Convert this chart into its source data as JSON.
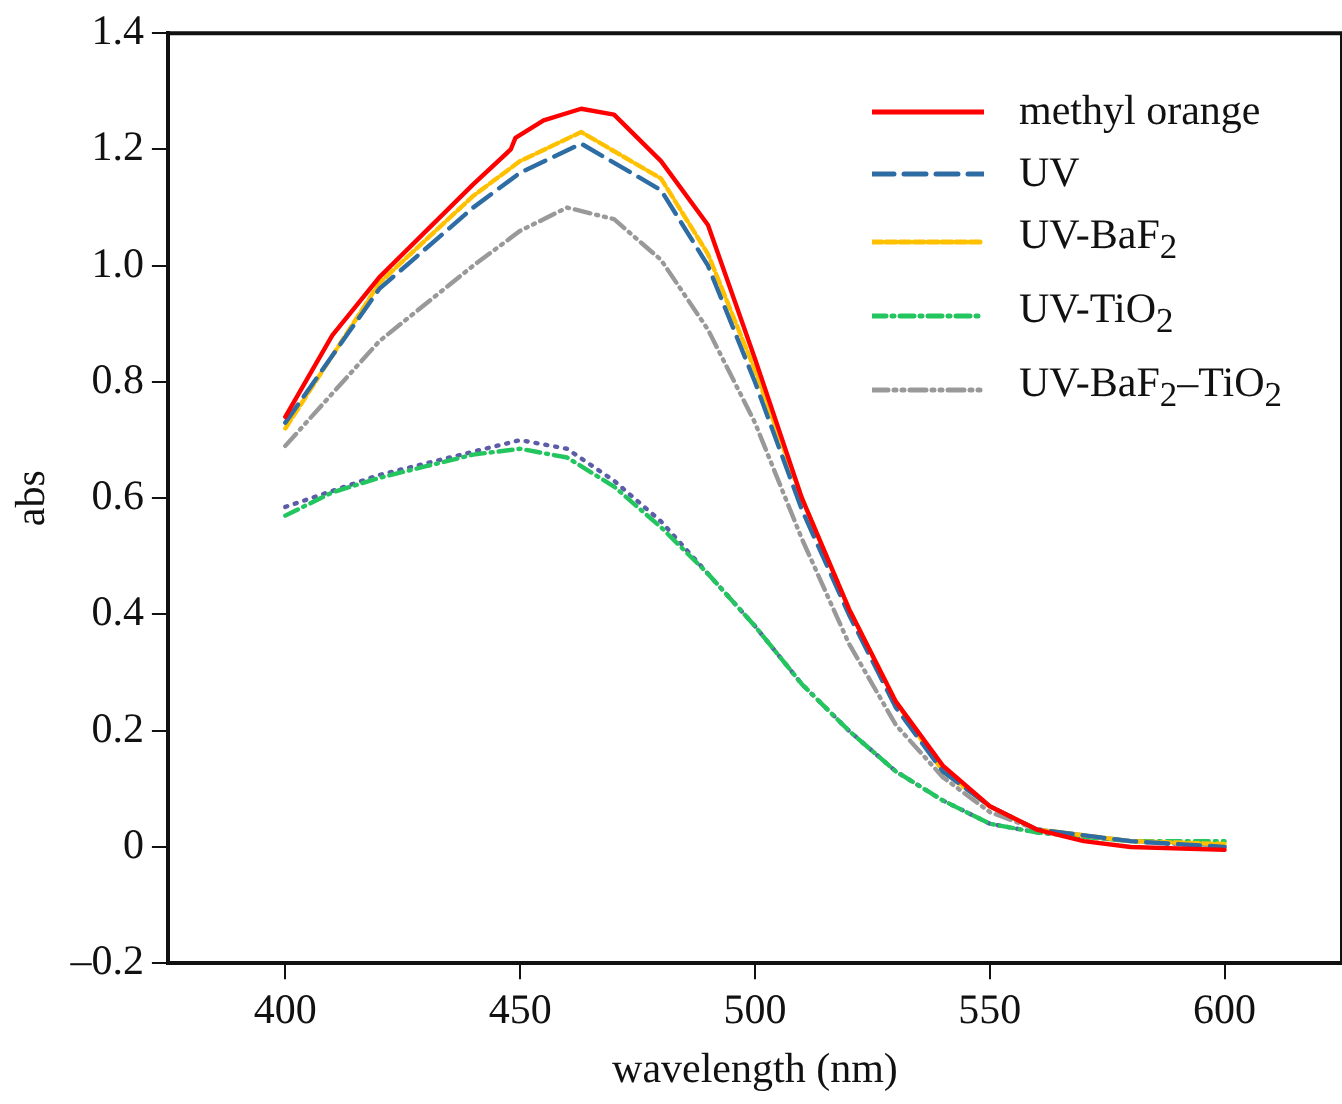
{
  "chart_data": {
    "type": "line",
    "xlabel": "wavelength (nm)",
    "ylabel": "abs",
    "xlim": [
      375,
      625
    ],
    "xticks": [
      400,
      450,
      500,
      550,
      600
    ],
    "ylim": [
      -0.2,
      1.4
    ],
    "yticks": [
      {
        "value": -0.2,
        "label": "–0.2"
      },
      0,
      {
        "value": 0.2,
        "label": "0.2"
      },
      {
        "value": 0.4,
        "label": "0.4"
      },
      {
        "value": 0.6,
        "label": "0.6"
      },
      {
        "value": 0.8,
        "label": "0.8"
      },
      {
        "value": 1.0,
        "label": "1.0"
      },
      {
        "value": 1.2,
        "label": "1.2"
      },
      {
        "value": 1.4,
        "label": "1.4"
      }
    ],
    "grid": false,
    "legend": "top right",
    "marker": "none",
    "series": [
      {
        "name": "methyl orange",
        "color": "#ff0000",
        "line_style": "solid",
        "x": [
          400,
          410,
          420,
          430,
          440,
          448,
          449,
          455,
          463,
          470,
          480,
          490,
          500,
          510,
          520,
          530,
          540,
          550,
          560,
          570,
          580,
          600
        ],
        "values": [
          0.74,
          0.88,
          0.98,
          1.06,
          1.14,
          1.2,
          1.22,
          1.25,
          1.27,
          1.26,
          1.18,
          1.07,
          0.84,
          0.6,
          0.41,
          0.25,
          0.14,
          0.07,
          0.03,
          0.01,
          0,
          -0.005
        ]
      },
      {
        "name": "UV",
        "color": "#2e6da4",
        "line_style": "dashed",
        "x": [
          400,
          420,
          440,
          450,
          463,
          480,
          490,
          500,
          510,
          520,
          530,
          540,
          550,
          560,
          580,
          600
        ],
        "values": [
          0.73,
          0.96,
          1.1,
          1.16,
          1.21,
          1.13,
          1.0,
          0.8,
          0.58,
          0.4,
          0.24,
          0.13,
          0.07,
          0.03,
          0.01,
          0
        ]
      },
      {
        "name": "UV-BaF$_{2}$",
        "color": "#ffc000",
        "line_style": "shortdash",
        "x": [
          400,
          420,
          440,
          450,
          463,
          480,
          490,
          500,
          510,
          520,
          530,
          540,
          550,
          560,
          580,
          600
        ],
        "values": [
          0.72,
          0.97,
          1.12,
          1.18,
          1.23,
          1.15,
          1.02,
          0.82,
          0.6,
          0.41,
          0.25,
          0.13,
          0.07,
          0.03,
          0.01,
          0.005
        ]
      },
      {
        "name": "UV-TiO$_{2}$",
        "color": "#22c55e",
        "line_style": "dashdot",
        "x": [
          400,
          410,
          420,
          430,
          440,
          450,
          460,
          470,
          480,
          490,
          500,
          510,
          520,
          530,
          540,
          550,
          560,
          580,
          600
        ],
        "values": [
          0.57,
          0.61,
          0.635,
          0.655,
          0.675,
          0.685,
          0.67,
          0.62,
          0.55,
          0.47,
          0.38,
          0.28,
          0.2,
          0.13,
          0.08,
          0.04,
          0.025,
          0.01,
          0.01
        ]
      },
      {
        "color": "#5c5ca8",
        "line_style": "dotted",
        "x": [
          400,
          420,
          440,
          450,
          460,
          470,
          480,
          490,
          500,
          510,
          520,
          530,
          540,
          550,
          560,
          580,
          600
        ],
        "values": [
          0.585,
          0.64,
          0.68,
          0.7,
          0.685,
          0.63,
          0.56,
          0.47,
          0.38,
          0.28,
          0.2,
          0.13,
          0.08,
          0.04,
          0.025,
          0.01,
          0
        ]
      },
      {
        "name": "UV-BaF$_{2}$–TiO$_{2}$",
        "color": "#999999",
        "line_style": "dashdotdot",
        "x": [
          400,
          420,
          440,
          450,
          460,
          470,
          480,
          490,
          500,
          510,
          520,
          530,
          540,
          550,
          560,
          580,
          600
        ],
        "values": [
          0.69,
          0.87,
          1.0,
          1.06,
          1.1,
          1.08,
          1.01,
          0.89,
          0.73,
          0.53,
          0.35,
          0.21,
          0.12,
          0.06,
          0.03,
          0.01,
          0
        ]
      }
    ]
  }
}
